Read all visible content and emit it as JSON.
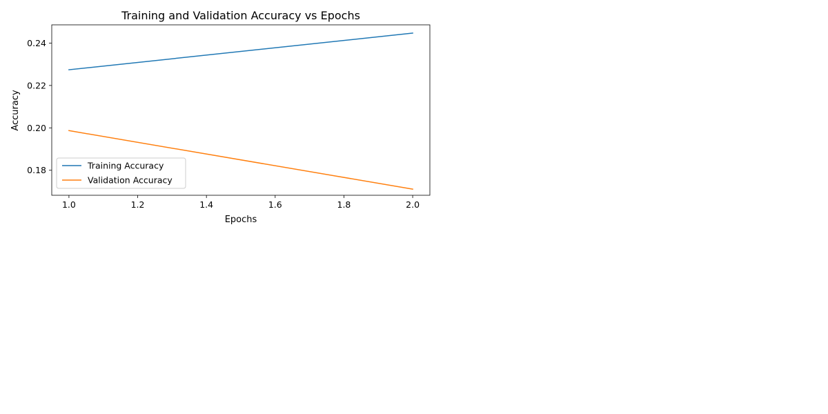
{
  "chart_data": {
    "type": "line",
    "title": "Training and Validation Accuracy vs Epochs",
    "xlabel": "Epochs",
    "ylabel": "Accuracy",
    "x": [
      1.0,
      2.0
    ],
    "xlim": [
      0.95,
      2.05
    ],
    "ylim": [
      0.1682,
      0.2486
    ],
    "xticks": [
      1.0,
      1.2,
      1.4,
      1.6,
      1.8,
      2.0
    ],
    "xtick_labels": [
      "1.0",
      "1.2",
      "1.4",
      "1.6",
      "1.8",
      "2.0"
    ],
    "yticks": [
      0.18,
      0.2,
      0.22,
      0.24
    ],
    "ytick_labels": [
      "0.18",
      "0.20",
      "0.22",
      "0.24"
    ],
    "series": [
      {
        "name": "Training Accuracy",
        "values": [
          0.2274,
          0.2447
        ],
        "color": "#1f77b4"
      },
      {
        "name": "Validation Accuracy",
        "values": [
          0.1987,
          0.1711
        ],
        "color": "#ff7f0e"
      }
    ],
    "legend": "lower-left",
    "grid": false
  }
}
